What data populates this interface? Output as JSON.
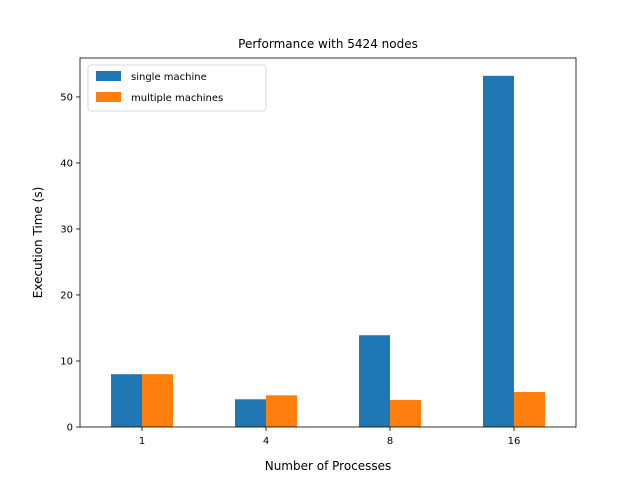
{
  "chart_data": {
    "type": "bar",
    "title": "Performance with 5424 nodes",
    "xlabel": "Number of Processes",
    "ylabel": "Execution Time (s)",
    "categories": [
      "1",
      "4",
      "8",
      "16"
    ],
    "series": [
      {
        "name": "single machine",
        "color": "#1f77b4",
        "values": [
          8.0,
          4.2,
          13.9,
          53.2
        ]
      },
      {
        "name": "multiple machines",
        "color": "#ff7f0e",
        "values": [
          8.0,
          4.8,
          4.1,
          5.3
        ]
      }
    ],
    "ylim": [
      0,
      55.9
    ],
    "yticks": [
      0,
      10,
      20,
      30,
      40,
      50
    ],
    "legend_position": "top-left",
    "grid": false
  }
}
